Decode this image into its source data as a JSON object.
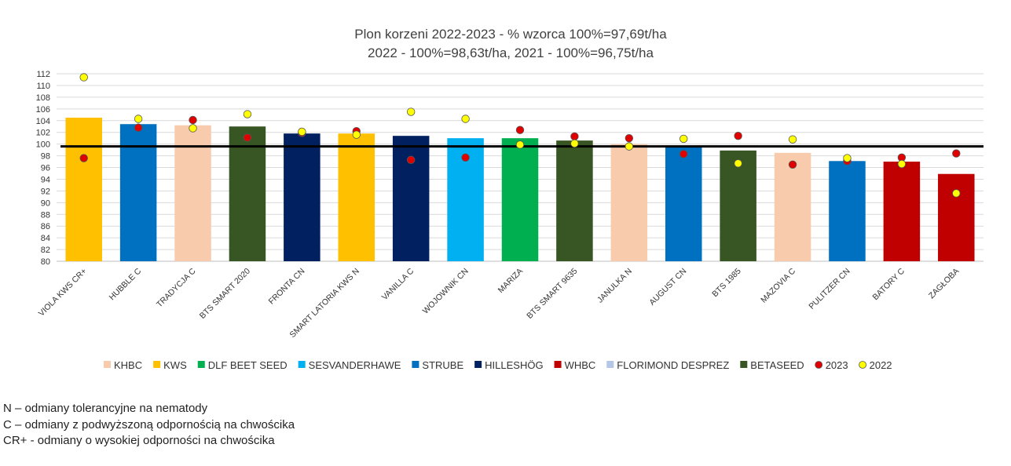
{
  "chart_data": {
    "type": "bar",
    "title_lines": [
      "Plon korzeni 2022-2023 - % wzorca 100%=97,69t/ha",
      "2022 - 100%=98,63t/ha, 2021 - 100%=96,75t/ha"
    ],
    "ylim": [
      80,
      112
    ],
    "ytick_step": 2,
    "grid": true,
    "reference_line": 99.6,
    "categories": [
      "VIOLA KWS CR+",
      "HUBBLE C",
      "TRADYCJA C",
      "BTS SMART 2020",
      "FRONTA CN",
      "SMART LATORIA KWS N",
      "VANILLA C",
      "WOJOWNIK CN",
      "MARIZA",
      "BTS SMART 9635",
      "JANULKA N",
      "AUGUST CN",
      "BTS 1985",
      "MAZOVIA C",
      "PULITZER CN",
      "BATORY C",
      "ZAGŁOBA"
    ],
    "bar_values": [
      104.5,
      103.4,
      103.2,
      103.0,
      101.8,
      101.8,
      101.4,
      101.0,
      101.0,
      100.6,
      100.0,
      99.7,
      98.9,
      98.5,
      97.1,
      97.0,
      94.9
    ],
    "bar_breeders": [
      "KWS",
      "STRUBE",
      "KHBC",
      "BETASEED",
      "HILLESHÖG",
      "KWS",
      "HILLESHÖG",
      "SESVANDERHAWE",
      "DLF BEET SEED",
      "BETASEED",
      "KHBC",
      "STRUBE",
      "BETASEED",
      "KHBC",
      "STRUBE",
      "WHBC",
      "WHBC"
    ],
    "series": [
      {
        "name": "2023",
        "color": "#e00000",
        "values": [
          97.6,
          102.8,
          104.1,
          101.1,
          101.9,
          102.2,
          97.3,
          97.7,
          102.4,
          101.3,
          101.0,
          98.3,
          101.4,
          96.5,
          97.1,
          97.7,
          98.4
        ]
      },
      {
        "name": "2022",
        "color": "#ffff00",
        "values": [
          111.4,
          104.3,
          102.7,
          105.1,
          102.1,
          101.6,
          105.5,
          104.3,
          99.9,
          100.1,
          99.6,
          100.9,
          96.7,
          100.8,
          97.6,
          96.6,
          91.6
        ]
      }
    ],
    "legend": [
      {
        "label": "KHBC",
        "color": "#f8cbad",
        "kind": "bar"
      },
      {
        "label": "KWS",
        "color": "#ffc000",
        "kind": "bar"
      },
      {
        "label": "DLF BEET SEED",
        "color": "#00b050",
        "kind": "bar"
      },
      {
        "label": "SESVANDERHAWE",
        "color": "#00b0f0",
        "kind": "bar"
      },
      {
        "label": "STRUBE",
        "color": "#0070c0",
        "kind": "bar"
      },
      {
        "label": "HILLESHÖG",
        "color": "#002060",
        "kind": "bar"
      },
      {
        "label": "WHBC",
        "color": "#c00000",
        "kind": "bar"
      },
      {
        "label": "FLORIMOND DESPREZ",
        "color": "#b4c7e7",
        "kind": "bar"
      },
      {
        "label": "BETASEED",
        "color": "#375623",
        "kind": "bar"
      },
      {
        "label": "2023",
        "color": "#e00000",
        "kind": "dot"
      },
      {
        "label": "2022",
        "color": "#ffff00",
        "kind": "dot"
      }
    ],
    "legend_position": "bottom"
  },
  "notes": [
    "N – odmiany tolerancyjne na nematody",
    "C – odmiany z podwyższoną odpornością na chwościka",
    "CR+ - odmiany o wysokiej odporności na chwościka"
  ]
}
